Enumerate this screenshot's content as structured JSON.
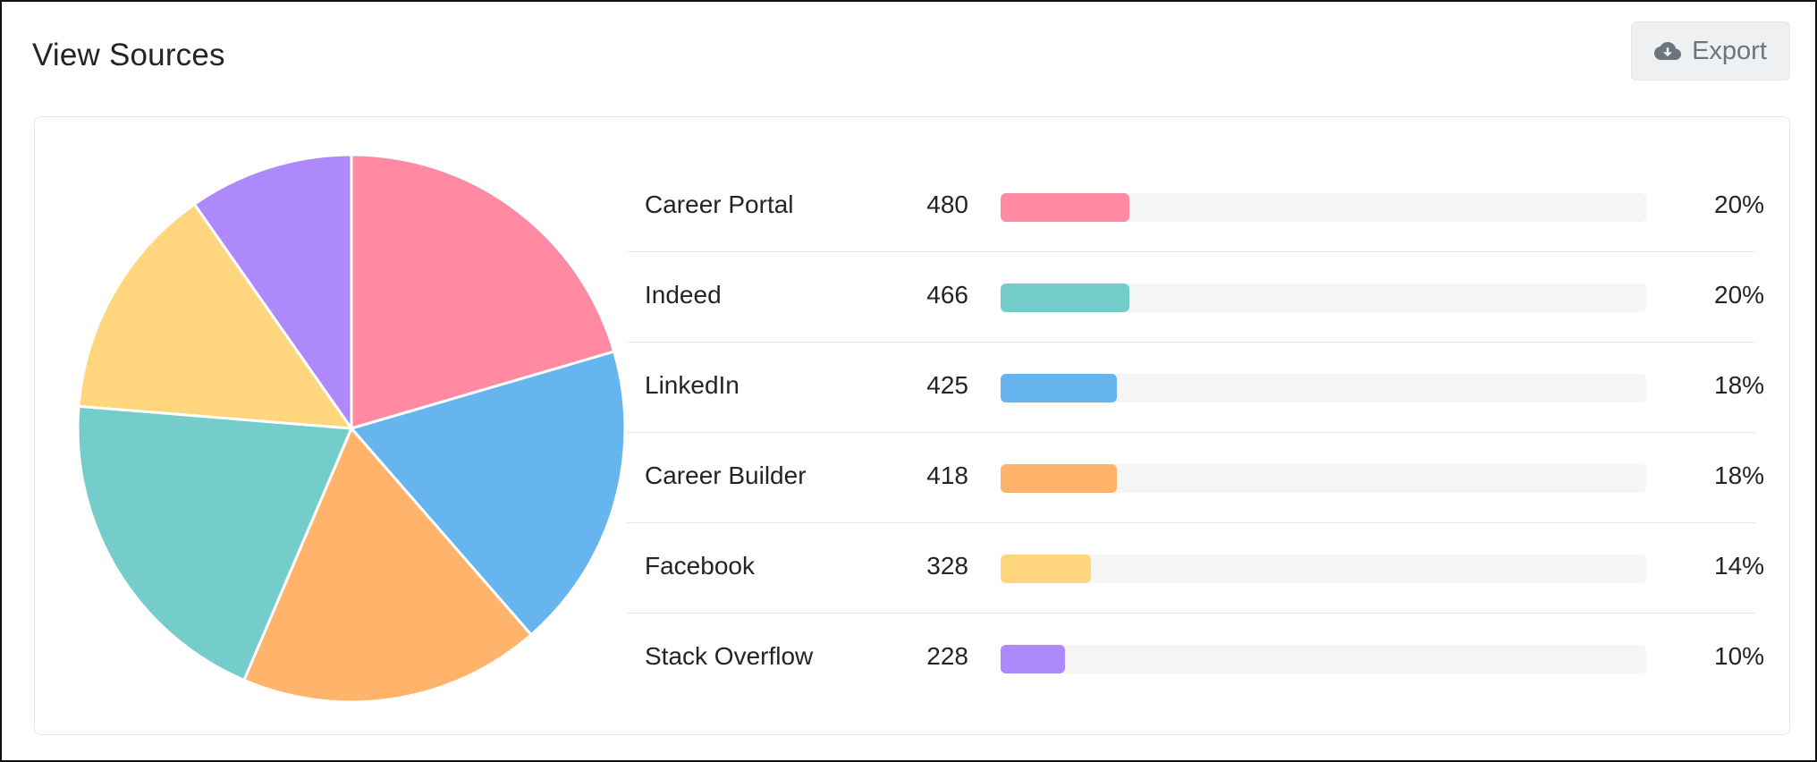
{
  "header": {
    "title": "View Sources",
    "export_label": "Export"
  },
  "colors": {
    "pink": "#FF8AA1",
    "teal": "#74CDCB",
    "blue": "#66B5EE",
    "orange": "#FFB36B",
    "yellow": "#FFD67E",
    "purple": "#AD89FC"
  },
  "chart_data": {
    "type": "pie",
    "title": "",
    "start_angle_deg": 0,
    "direction": "clockwise",
    "categories": [
      "Career Portal",
      "Indeed",
      "LinkedIn",
      "Career Builder",
      "Facebook",
      "Stack Overflow"
    ],
    "values": [
      480,
      466,
      425,
      418,
      328,
      228
    ],
    "percentages": [
      "20%",
      "20%",
      "18%",
      "18%",
      "14%",
      "10%"
    ],
    "slice_order_clockwise_from_top": [
      "Career Portal",
      "LinkedIn",
      "Career Builder",
      "Indeed",
      "Facebook",
      "Stack Overflow"
    ],
    "colors": {
      "Career Portal": "#FF8AA1",
      "Indeed": "#74CDCB",
      "LinkedIn": "#66B5EE",
      "Career Builder": "#FFB36B",
      "Facebook": "#FFD67E",
      "Stack Overflow": "#AD89FC"
    }
  },
  "sources": [
    {
      "name": "Career Portal",
      "count": "480",
      "percent": "20%",
      "fraction": 0.2,
      "color": "#FF8AA1"
    },
    {
      "name": "Indeed",
      "count": "466",
      "percent": "20%",
      "fraction": 0.2,
      "color": "#74CDCB"
    },
    {
      "name": "LinkedIn",
      "count": "425",
      "percent": "18%",
      "fraction": 0.18,
      "color": "#66B5EE"
    },
    {
      "name": "Career Builder",
      "count": "418",
      "percent": "18%",
      "fraction": 0.18,
      "color": "#FFB36B"
    },
    {
      "name": "Facebook",
      "count": "328",
      "percent": "14%",
      "fraction": 0.14,
      "color": "#FFD67E"
    },
    {
      "name": "Stack Overflow",
      "count": "228",
      "percent": "10%",
      "fraction": 0.1,
      "color": "#AD89FC"
    }
  ]
}
